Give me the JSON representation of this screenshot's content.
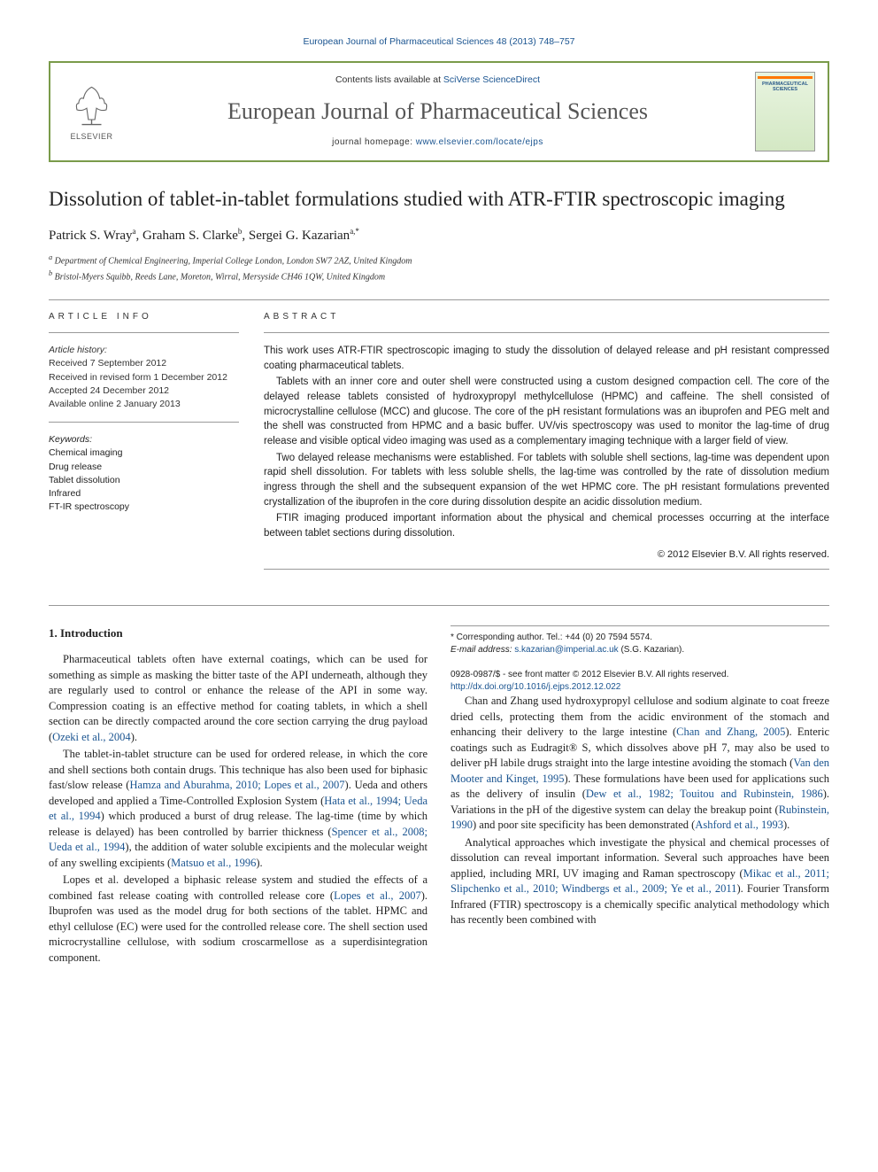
{
  "top_link": "European Journal of Pharmaceutical Sciences 48 (2013) 748–757",
  "header": {
    "contents_prefix": "Contents lists available at ",
    "contents_link": "SciVerse ScienceDirect",
    "journal_title": "European Journal of Pharmaceutical Sciences",
    "homepage_prefix": "journal homepage: ",
    "homepage_link": "www.elsevier.com/locate/ejps",
    "publisher": "ELSEVIER",
    "cover_text": "PHARMACEUTICAL SCIENCES"
  },
  "article": {
    "title": "Dissolution of tablet-in-tablet formulations studied with ATR-FTIR spectroscopic imaging",
    "authors_html": "Patrick S. Wray<sup>a</sup>, Graham S. Clarke<sup>b</sup>, Sergei G. Kazarian<sup>a,*</sup>",
    "affiliations": {
      "a": "Department of Chemical Engineering, Imperial College London, London SW7 2AZ, United Kingdom",
      "b": "Bristol-Myers Squibb, Reeds Lane, Moreton, Wirral, Mersyside CH46 1QW, United Kingdom"
    }
  },
  "info": {
    "head": "ARTICLE INFO",
    "history_label": "Article history:",
    "history": [
      "Received 7 September 2012",
      "Received in revised form 1 December 2012",
      "Accepted 24 December 2012",
      "Available online 2 January 2013"
    ],
    "keywords_label": "Keywords:",
    "keywords": [
      "Chemical imaging",
      "Drug release",
      "Tablet dissolution",
      "Infrared",
      "FT-IR spectroscopy"
    ]
  },
  "abstract": {
    "head": "ABSTRACT",
    "paragraphs": [
      "This work uses ATR-FTIR spectroscopic imaging to study the dissolution of delayed release and pH resistant compressed coating pharmaceutical tablets.",
      "Tablets with an inner core and outer shell were constructed using a custom designed compaction cell. The core of the delayed release tablets consisted of hydroxypropyl methylcellulose (HPMC) and caffeine. The shell consisted of microcrystalline cellulose (MCC) and glucose. The core of the pH resistant formulations was an ibuprofen and PEG melt and the shell was constructed from HPMC and a basic buffer. UV/vis spectroscopy was used to monitor the lag-time of drug release and visible optical video imaging was used as a complementary imaging technique with a larger field of view.",
      "Two delayed release mechanisms were established. For tablets with soluble shell sections, lag-time was dependent upon rapid shell dissolution. For tablets with less soluble shells, the lag-time was controlled by the rate of dissolution medium ingress through the shell and the subsequent expansion of the wet HPMC core. The pH resistant formulations prevented crystallization of the ibuprofen in the core during dissolution despite an acidic dissolution medium.",
      "FTIR imaging produced important information about the physical and chemical processes occurring at the interface between tablet sections during dissolution."
    ],
    "copyright": "© 2012 Elsevier B.V. All rights reserved."
  },
  "body": {
    "intro_head": "1. Introduction",
    "paragraphs": [
      {
        "text": "Pharmaceutical tablets often have external coatings, which can be used for something as simple as masking the bitter taste of the API underneath, although they are regularly used to control or enhance the release of the API in some way. Compression coating is an effective method for coating tablets, in which a shell section can be directly compacted around the core section carrying the drug payload (",
        "cite": "Ozeki et al., 2004",
        "tail": ")."
      },
      {
        "text": "The tablet-in-tablet structure can be used for ordered release, in which the core and shell sections both contain drugs. This technique has also been used for biphasic fast/slow release (",
        "cite": "Hamza and Aburahma, 2010; Lopes et al., 2007",
        "tail": "). Ueda and others developed and applied a Time-Controlled Explosion System (",
        "cite2": "Hata et al., 1994; Ueda et al., 1994",
        "tail2": ") which produced a burst of drug release. The lag-time (time by which release is delayed) has been controlled by barrier thickness (",
        "cite3": "Spencer et al., 2008; Ueda et al., 1994",
        "tail3": "), the addition of water soluble excipients and the molecular weight of any swelling excipients (",
        "cite4": "Matsuo et al., 1996",
        "tail4": ")."
      },
      {
        "text": "Lopes et al. developed a biphasic release system and studied the effects of a combined fast release coating with controlled release core (",
        "cite": "Lopes et al., 2007",
        "tail": "). Ibuprofen was used as the model drug for both sections of the tablet. HPMC and ethyl cellulose (EC) were used for the controlled release core. The shell section used microcrystalline cellulose, with sodium croscarmellose as a superdisintegration component."
      },
      {
        "text": "Chan and Zhang used hydroxypropyl cellulose and sodium alginate to coat freeze dried cells, protecting them from the acidic environment of the stomach and enhancing their delivery to the large intestine (",
        "cite": "Chan and Zhang, 2005",
        "tail": "). Enteric coatings such as Eudragit® S, which dissolves above pH 7, may also be used to deliver pH labile drugs straight into the large intestine avoiding the stomach (",
        "cite2": "Van den Mooter and Kinget, 1995",
        "tail2": "). These formulations have been used for applications such as the delivery of insulin (",
        "cite3": "Dew et al., 1982; Touitou and Rubinstein, 1986",
        "tail3": "). Variations in the pH of the digestive system can delay the breakup point (",
        "cite4": "Rubinstein, 1990",
        "tail4": ") and poor site specificity has been demonstrated (",
        "cite5": "Ashford et al., 1993",
        "tail5": ")."
      },
      {
        "text": "Analytical approaches which investigate the physical and chemical processes of dissolution can reveal important information. Several such approaches have been applied, including MRI, UV imaging and Raman spectroscopy (",
        "cite": "Mikac et al., 2011; Slipchenko et al., 2010; Windbergs et al., 2009; Ye et al., 2011",
        "tail": "). Fourier Transform Infrared (FTIR) spectroscopy is a chemically specific analytical methodology which has recently been combined with"
      }
    ]
  },
  "footer": {
    "corr": "* Corresponding author. Tel.: +44 (0) 20 7594 5574.",
    "email_label": "E-mail address: ",
    "email": "s.kazarian@imperial.ac.uk",
    "email_suffix": " (S.G. Kazarian).",
    "issn": "0928-0987/$ - see front matter © 2012 Elsevier B.V. All rights reserved.",
    "doi": "http://dx.doi.org/10.1016/j.ejps.2012.12.022"
  },
  "colors": {
    "link": "#1a5490",
    "border": "#7a9b4a",
    "rule": "#999999",
    "text": "#222222"
  }
}
